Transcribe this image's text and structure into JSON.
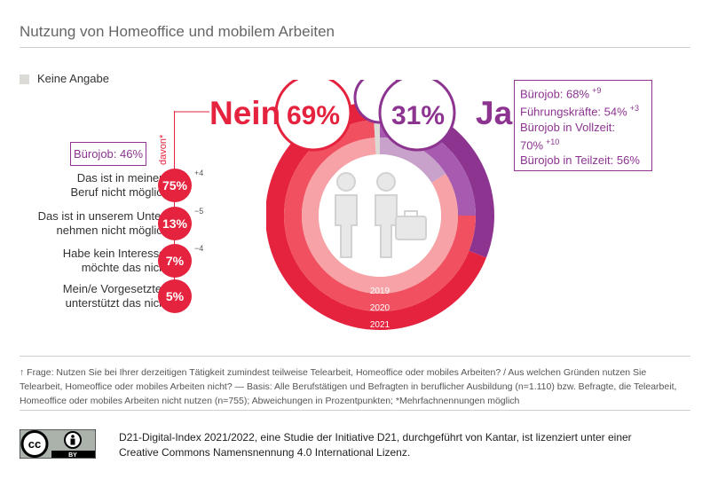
{
  "title": "Nutzung von Homeoffice und mobilem Arbeiten",
  "legend": {
    "label": "Keine Angabe",
    "color": "#dcdad5"
  },
  "colors": {
    "nein": "#e5233e",
    "ja": "#8c3490"
  },
  "nein": {
    "label": "Nein",
    "value": "69%"
  },
  "ja": {
    "label": "Ja",
    "value": "31%"
  },
  "davon_label": "davon*",
  "nein_callout": "Bürojob: 46%",
  "ja_callout": [
    {
      "text": "Bürojob: 68%",
      "delta": "+9"
    },
    {
      "text": "Führungskräfte: 54%",
      "delta": "+3"
    },
    {
      "text": "Bürojob in Vollzeit: 70%",
      "delta": "+10"
    },
    {
      "text": "Bürojob in Teilzeit: 56%",
      "delta": ""
    }
  ],
  "reasons": [
    {
      "line1": "Das ist in meinem",
      "line2": "Beruf nicht möglich",
      "value": "75%",
      "delta": "+4"
    },
    {
      "line1": "Das ist in unserem Unter-",
      "line2": "nehmen nicht möglich",
      "value": "13%",
      "delta": "−5"
    },
    {
      "line1": "Habe kein Interesse,",
      "line2": "möchte das nicht",
      "value": "7%",
      "delta": "−4"
    },
    {
      "line1": "Mein/e Vorgesetzte/r",
      "line2": "unterstützt das nicht",
      "value": "5%",
      "delta": ""
    }
  ],
  "footnote": "↑ Frage: Nutzen Sie bei Ihrer derzeitigen Tätigkeit zumindest teilweise Telearbeit, Homeoffice oder mobiles Arbeiten? / Aus welchen Gründen nutzen Sie Telearbeit, Homeoffice oder mobiles Arbeiten nicht? — Basis: Alle Berufstätigen und Befragten in beruflicher Ausbildung (n=1.110) bzw. Befragte, die Telearbeit, Homeoffice oder mobiles Arbeiten nicht nutzen (n=755); Abweichungen in Prozentpunkten; *Mehrfachnennungen möglich",
  "license": "D21-Digital-Index 2021/2022, eine Studie der Initiative D21, durchgeführt von Kantar, ist lizenziert unter einer Creative Commons Namensnennung 4.0 International Lizenz.",
  "cc": {
    "cc": "cc",
    "by": "BY"
  },
  "chart_data": {
    "type": "pie",
    "title": "Nutzung von Homeoffice und mobilem Arbeiten",
    "rings": [
      {
        "name": "2019",
        "ja": 0.16,
        "keine": 0.01
      },
      {
        "name": "2020",
        "ja": 0.25,
        "keine": 0.01
      },
      {
        "name": "2021",
        "ja": 0.31,
        "keine": 0.0
      }
    ],
    "series": [
      {
        "name": "Ja",
        "values": [
          16,
          25,
          31
        ]
      },
      {
        "name": "Nein",
        "values": [
          83,
          74,
          69
        ]
      }
    ],
    "categories": [
      "2019",
      "2020",
      "2021"
    ],
    "reasons_nein": {
      "categories": [
        "Das ist in meinem Beruf nicht möglich",
        "Das ist in unserem Unternehmen nicht möglich",
        "Habe kein Interesse, möchte das nicht",
        "Mein/e Vorgesetzte/r unterstützt das nicht"
      ],
      "values": [
        75,
        13,
        7,
        5
      ],
      "changes": [
        4,
        -5,
        -4,
        null
      ]
    }
  }
}
